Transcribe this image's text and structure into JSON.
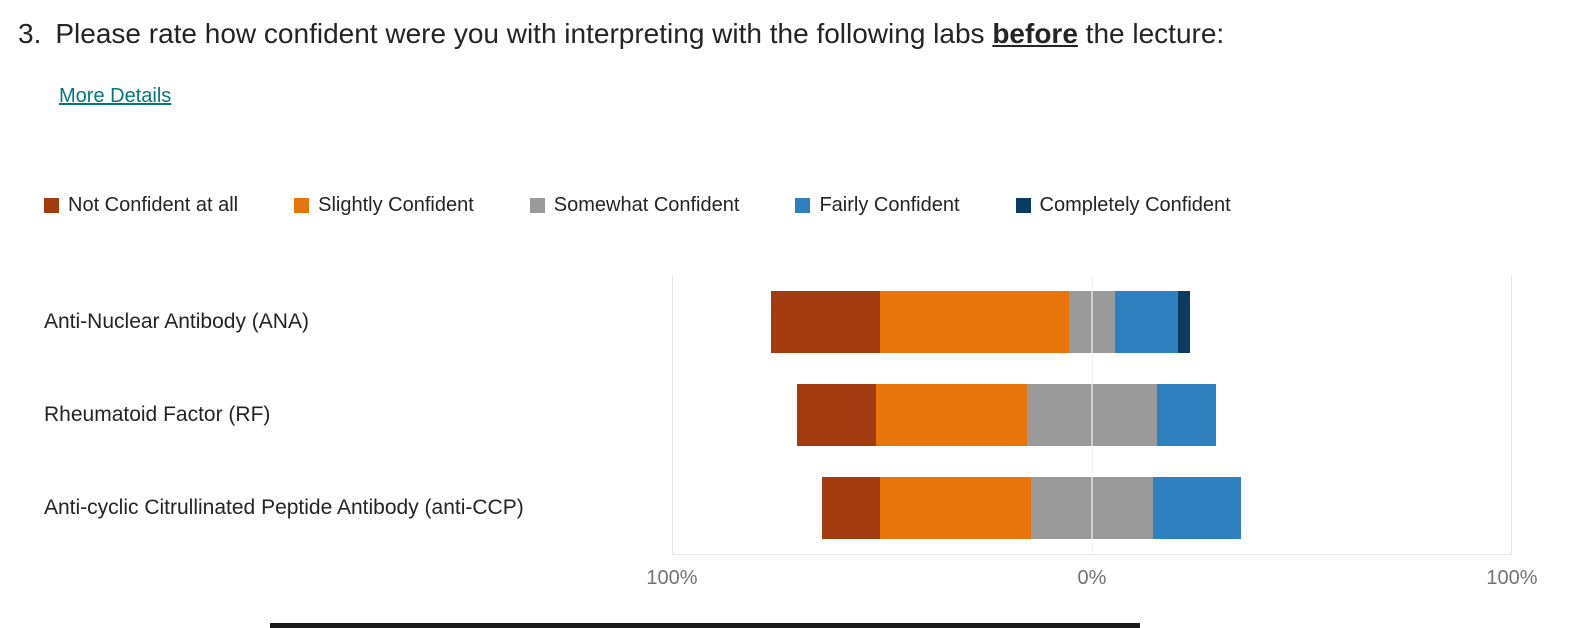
{
  "question": {
    "number": "3.",
    "text_before": "Please rate how confident were you with interpreting with the following labs ",
    "emphasis": "before",
    "text_after": " the lecture:"
  },
  "more_details_label": "More Details",
  "chart_data": {
    "type": "bar",
    "subtype": "diverging-stacked-horizontal",
    "title": "",
    "categories": [
      "Anti-Nuclear Antibody (ANA)",
      "Rheumatoid Factor (RF)",
      "Anti-cyclic Citrullinated Peptide Antibody (anti-CCP)"
    ],
    "series": [
      {
        "name": "Not Confident at all",
        "color": "#A33B10",
        "values": [
          26,
          19,
          14
        ]
      },
      {
        "name": "Slightly Confident",
        "color": "#E8750C",
        "values": [
          45,
          36,
          36
        ]
      },
      {
        "name": "Somewhat Confident",
        "color": "#9A9A9A",
        "values": [
          11,
          31,
          29
        ]
      },
      {
        "name": "Fairly Confident",
        "color": "#2E80BE",
        "values": [
          15,
          14,
          21
        ]
      },
      {
        "name": "Completely Confident",
        "color": "#0B3B60",
        "values": [
          3,
          0,
          0
        ]
      }
    ],
    "values_unit": "%",
    "neutral_series": "Somewhat Confident",
    "neutral_index": 2,
    "axis": {
      "ticks": [
        "100%",
        "0%",
        "100%"
      ],
      "half_range": 100
    },
    "legend_position": "top",
    "grid": {
      "center_line": true
    }
  },
  "colors": {
    "link_accent": "#03787C",
    "text": "#242424",
    "axis_text": "#737373",
    "gridline": "#E1E1E1",
    "plot_border": "#E6E6E6",
    "bottom_scrollbar": "#1A1A1A"
  }
}
